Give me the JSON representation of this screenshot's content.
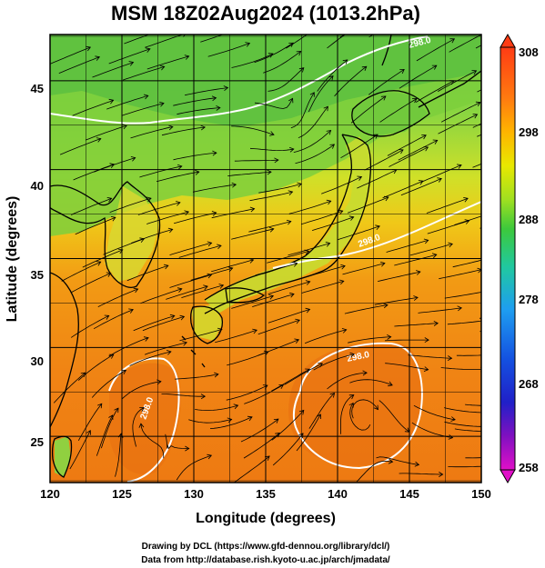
{
  "title": "MSM 18Z02Aug2024 (1013.2hPa)",
  "axes": {
    "xlabel": "Longitude (degrees)",
    "ylabel": "Latitude  (degrees)",
    "x_ticks": [
      "120",
      "125",
      "130",
      "135",
      "140",
      "145",
      "150"
    ],
    "y_ticks": [
      "25",
      "30",
      "35",
      "40",
      "45"
    ]
  },
  "colorbar": {
    "ticks": [
      "258",
      "268",
      "278",
      "288",
      "298",
      "308"
    ],
    "colors_top_to_bottom": [
      "#ff3c14",
      "#ff7a10",
      "#ffb400",
      "#e8e800",
      "#a0e020",
      "#3cc83c",
      "#20c8a0",
      "#1e9ef0",
      "#1450e0",
      "#2020c8",
      "#8010c0",
      "#e010c8"
    ]
  },
  "map": {
    "contour_labels": [
      "298.0",
      "298.0",
      "298.0",
      "298.0"
    ]
  },
  "chart_data": {
    "type": "heatmap",
    "title": "MSM 18Z02Aug2024 (1013.2hPa)",
    "xlabel": "Longitude (degrees)",
    "ylabel": "Latitude  (degrees)",
    "xlim": [
      120,
      150
    ],
    "ylim": [
      22.4,
      47.6
    ],
    "colorbar_range": [
      258,
      308
    ],
    "colorbar_ticks": [
      258,
      268,
      278,
      288,
      298,
      308
    ],
    "contour_level": 298.0,
    "overlays": [
      "coastlines",
      "streamlines",
      "lat-lon grid"
    ]
  },
  "footer": {
    "line1": "Drawing by DCL (https://www.gfd-dennou.org/library/dcl/)",
    "line2": "Data from http://database.rish.kyoto-u.ac.jp/arch/jmadata/"
  }
}
